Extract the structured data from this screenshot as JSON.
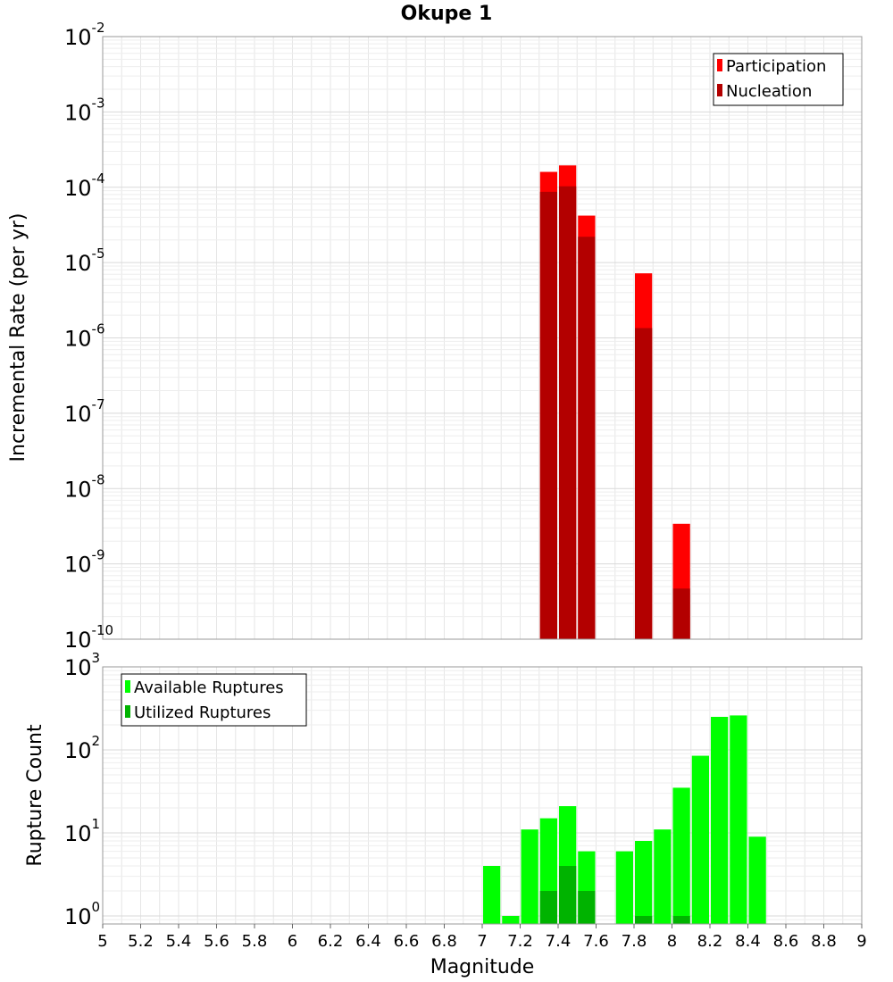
{
  "title": "Okupe 1",
  "chart_data": [
    {
      "type": "bar",
      "ylabel": "Incremental Rate (per yr)",
      "xlabel": "",
      "yscale": "log",
      "ylim": [
        1e-10,
        0.01
      ],
      "xlim": [
        5,
        9
      ],
      "bin_width": 0.1,
      "grid": true,
      "legend_position": "top-right",
      "series": [
        {
          "name": "Participation",
          "color": "#ff0000",
          "x": [
            7.35,
            7.45,
            7.55,
            7.85,
            8.05
          ],
          "values": [
            0.00016,
            0.000195,
            4.2e-05,
            7.2e-06,
            3.4e-09
          ]
        },
        {
          "name": "Nucleation",
          "color": "#b30000",
          "x": [
            7.35,
            7.45,
            7.55,
            7.85,
            8.05
          ],
          "values": [
            8.7e-05,
            0.000103,
            2.2e-05,
            1.35e-06,
            4.7e-10
          ]
        }
      ]
    },
    {
      "type": "bar",
      "ylabel": "Rupture Count",
      "xlabel": "Magnitude",
      "yscale": "log",
      "ylim": [
        0.8,
        1000
      ],
      "xlim": [
        5,
        9
      ],
      "bin_width": 0.1,
      "grid": true,
      "legend_position": "top-left",
      "xticks": [
        "5",
        "5.2",
        "5.4",
        "5.6",
        "5.8",
        "6",
        "6.2",
        "6.4",
        "6.6",
        "6.8",
        "7",
        "7.2",
        "7.4",
        "7.6",
        "7.8",
        "8",
        "8.2",
        "8.4",
        "8.6",
        "8.8",
        "9"
      ],
      "series": [
        {
          "name": "Available Ruptures",
          "color": "#00ff00",
          "x": [
            7.05,
            7.15,
            7.25,
            7.35,
            7.45,
            7.55,
            7.75,
            7.85,
            7.95,
            8.05,
            8.15,
            8.25,
            8.35,
            8.45
          ],
          "values": [
            4,
            1,
            11,
            15,
            21,
            6,
            6,
            8,
            11,
            35,
            85,
            250,
            260,
            9
          ]
        },
        {
          "name": "Utilized Ruptures",
          "color": "#00b300",
          "x": [
            7.35,
            7.45,
            7.55,
            7.85,
            8.05
          ],
          "values": [
            2,
            4,
            2,
            1,
            1
          ]
        }
      ]
    }
  ]
}
